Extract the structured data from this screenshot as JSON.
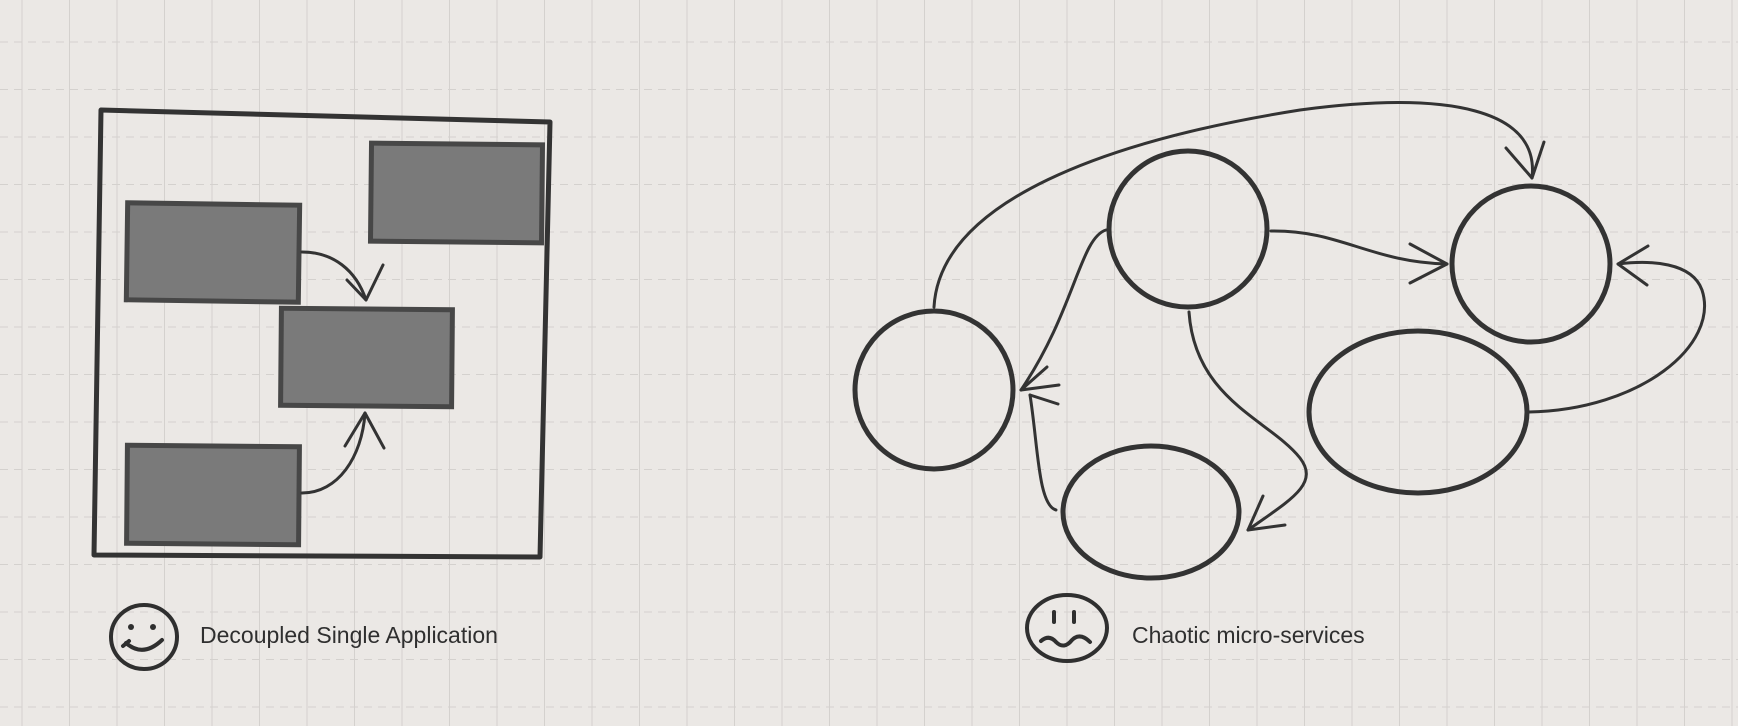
{
  "colors": {
    "background": "#ebe8e5",
    "grid": "#d4d1ce",
    "ink": "#2f2f2f",
    "module_fill": "#7a7a7a",
    "module_stroke": "#464646"
  },
  "left_panel": {
    "caption": "Decoupled Single Application",
    "emoji_icon": "happy-face-icon"
  },
  "right_panel": {
    "caption": "Chaotic micro-services",
    "emoji_icon": "worried-face-icon"
  }
}
